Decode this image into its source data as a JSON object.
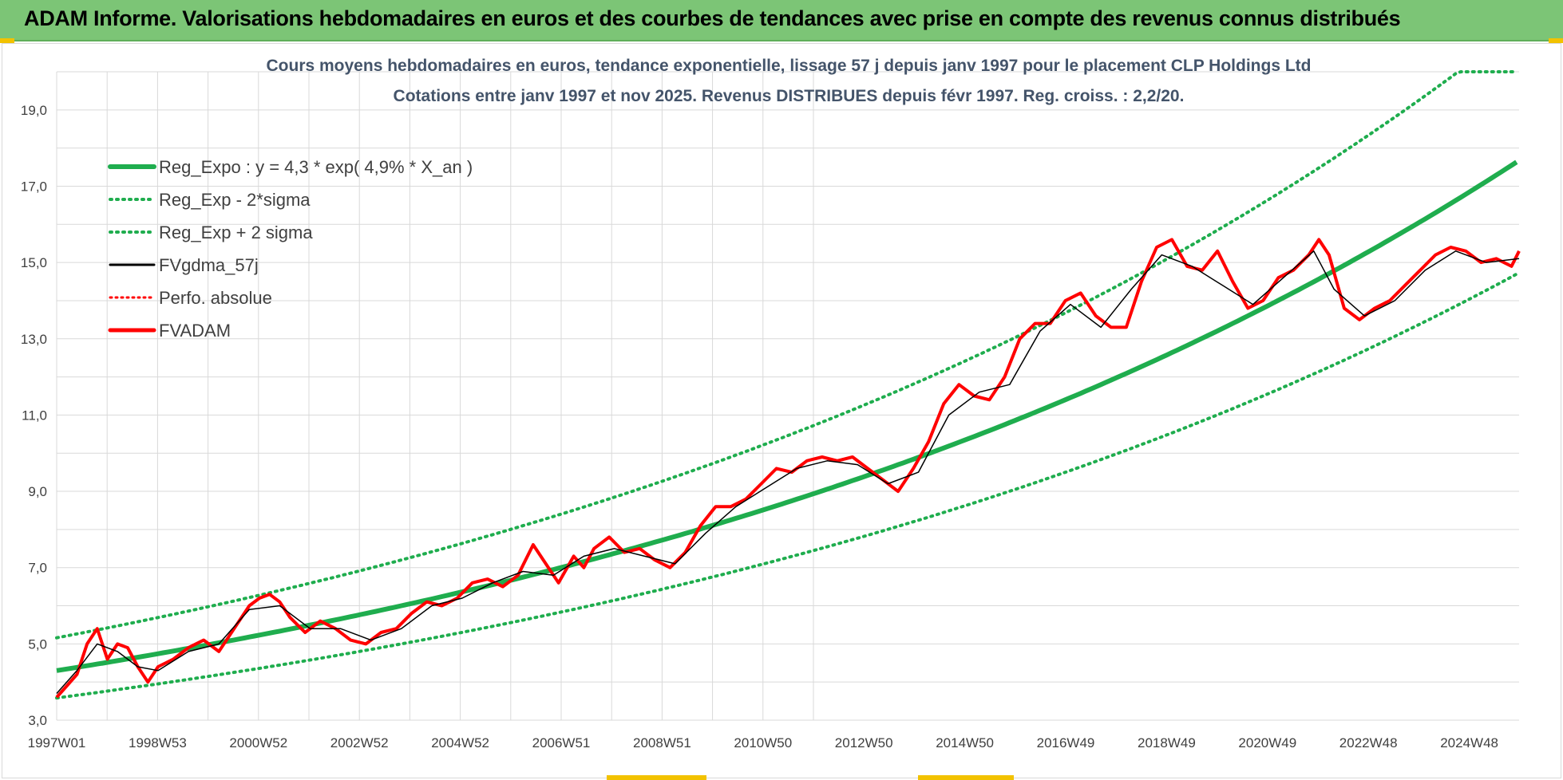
{
  "banner": {
    "title": "ADAM Informe. Valorisations hebdomadaires en euros et des courbes de tendances avec prise en compte des revenus connus distribués"
  },
  "colors": {
    "banner": "#7cc576",
    "reg_expo": "#1fad4e",
    "sigma": "#1fad4e",
    "fvgdma": "#000000",
    "perfo": "#ff0000",
    "fvadam": "#ff0000",
    "grid": "#d9d9d9",
    "title": "#44546a"
  },
  "chart_data": {
    "type": "line",
    "title_lines": [
      "Cours moyens hebdomadaires en euros, tendance exponentielle, lissage 57 j depuis janv 1997 pour le placement CLP Holdings Ltd",
      "Cotations entre janv 1997 et nov 2025. Revenus DISTRIBUES depuis févr 1997. Reg. croiss. : 2,2/20."
    ],
    "x_tick_labels": [
      "1997W01",
      "1998W53",
      "2000W52",
      "2002W52",
      "2004W52",
      "2006W51",
      "2008W51",
      "2010W50",
      "2012W50",
      "2014W50",
      "2016W49",
      "2018W49",
      "2020W49",
      "2022W48",
      "2024W48"
    ],
    "x_range_years": [
      1997.0,
      2025.85
    ],
    "y_tick_labels": [
      "3,0",
      "5,0",
      "7,0",
      "9,0",
      "11,0",
      "13,0",
      "15,0",
      "17,0",
      "19,0"
    ],
    "ylim": [
      3,
      20
    ],
    "grid": true,
    "legend_position": "top-left",
    "legend": [
      {
        "key": "reg_expo",
        "label": "Reg_Expo : y = 4,3 * exp( 4,9% *  X_an )",
        "style": "solid-thick"
      },
      {
        "key": "sigma_minus",
        "label": "Reg_Exp - 2*sigma",
        "style": "dotted"
      },
      {
        "key": "sigma_plus",
        "label": "Reg_Exp + 2 sigma",
        "style": "dotted"
      },
      {
        "key": "fvgdma",
        "label": "FVgdma_57j",
        "style": "solid"
      },
      {
        "key": "perfo",
        "label": "Perfo. absolue",
        "style": "dotted"
      },
      {
        "key": "fvadam",
        "label": "FVADAM",
        "style": "solid-thick"
      }
    ],
    "regression": {
      "a": 4.3,
      "b": 0.049,
      "sigma_factor": 1.2,
      "cap": 20.0
    },
    "series": [
      {
        "name": "FVADAM",
        "x": [
          1997.0,
          1997.2,
          1997.4,
          1997.6,
          1997.8,
          1998.0,
          1998.2,
          1998.4,
          1998.6,
          1998.8,
          1999.0,
          1999.3,
          1999.6,
          1999.9,
          2000.2,
          2000.5,
          2000.8,
          2001.0,
          2001.2,
          2001.4,
          2001.6,
          2001.9,
          2002.2,
          2002.5,
          2002.8,
          2003.1,
          2003.4,
          2003.7,
          2004.0,
          2004.3,
          2004.6,
          2004.9,
          2005.2,
          2005.5,
          2005.8,
          2006.1,
          2006.4,
          2006.6,
          2006.9,
          2007.2,
          2007.4,
          2007.6,
          2007.9,
          2008.2,
          2008.5,
          2008.8,
          2009.1,
          2009.4,
          2009.7,
          2010.0,
          2010.3,
          2010.6,
          2010.9,
          2011.2,
          2011.5,
          2011.8,
          2012.1,
          2012.4,
          2012.7,
          2013.0,
          2013.3,
          2013.6,
          2013.9,
          2014.2,
          2014.5,
          2014.8,
          2015.1,
          2015.4,
          2015.7,
          2016.0,
          2016.3,
          2016.6,
          2016.9,
          2017.2,
          2017.5,
          2017.8,
          2018.1,
          2018.4,
          2018.7,
          2019.0,
          2019.3,
          2019.6,
          2019.9,
          2020.2,
          2020.5,
          2020.8,
          2021.1,
          2021.4,
          2021.7,
          2021.9,
          2022.1,
          2022.4,
          2022.7,
          2023.0,
          2023.3,
          2023.6,
          2023.9,
          2024.2,
          2024.5,
          2024.8,
          2025.1,
          2025.4,
          2025.7,
          2025.85
        ],
        "values": [
          3.6,
          3.9,
          4.2,
          5.0,
          5.4,
          4.6,
          5.0,
          4.9,
          4.4,
          4.0,
          4.4,
          4.6,
          4.9,
          5.1,
          4.8,
          5.4,
          6.0,
          6.2,
          6.3,
          6.1,
          5.7,
          5.3,
          5.6,
          5.4,
          5.1,
          5.0,
          5.3,
          5.4,
          5.8,
          6.1,
          6.0,
          6.2,
          6.6,
          6.7,
          6.5,
          6.8,
          7.6,
          7.2,
          6.6,
          7.3,
          7.0,
          7.5,
          7.8,
          7.4,
          7.5,
          7.2,
          7.0,
          7.4,
          8.1,
          8.6,
          8.6,
          8.8,
          9.2,
          9.6,
          9.5,
          9.8,
          9.9,
          9.8,
          9.9,
          9.6,
          9.3,
          9.0,
          9.6,
          10.3,
          11.3,
          11.8,
          11.5,
          11.4,
          12.0,
          13.0,
          13.4,
          13.4,
          14.0,
          14.2,
          13.6,
          13.3,
          13.3,
          14.5,
          15.4,
          15.6,
          14.9,
          14.8,
          15.3,
          14.5,
          13.8,
          14.0,
          14.6,
          14.8,
          15.2,
          15.6,
          15.2,
          13.8,
          13.5,
          13.8,
          14.0,
          14.4,
          14.8,
          15.2,
          15.4,
          15.3,
          15.0,
          15.1,
          14.9,
          15.3
        ]
      },
      {
        "name": "FVgdma_57j",
        "x": [
          1997.0,
          1997.4,
          1997.8,
          1998.2,
          1998.6,
          1999.0,
          1999.6,
          2000.2,
          2000.8,
          2001.4,
          2002.0,
          2002.6,
          2003.2,
          2003.8,
          2004.4,
          2005.0,
          2005.6,
          2006.2,
          2006.8,
          2007.4,
          2008.0,
          2008.6,
          2009.2,
          2009.8,
          2010.4,
          2011.0,
          2011.6,
          2012.2,
          2012.8,
          2013.4,
          2014.0,
          2014.6,
          2015.2,
          2015.8,
          2016.4,
          2017.0,
          2017.6,
          2018.2,
          2018.8,
          2019.4,
          2020.0,
          2020.6,
          2021.2,
          2021.8,
          2022.2,
          2022.8,
          2023.4,
          2024.0,
          2024.6,
          2025.2,
          2025.85
        ],
        "values": [
          3.7,
          4.3,
          5.0,
          4.8,
          4.4,
          4.3,
          4.8,
          5.0,
          5.9,
          6.0,
          5.4,
          5.4,
          5.1,
          5.4,
          6.0,
          6.2,
          6.6,
          6.9,
          6.8,
          7.3,
          7.5,
          7.3,
          7.1,
          7.9,
          8.6,
          9.1,
          9.6,
          9.8,
          9.7,
          9.2,
          9.5,
          11.0,
          11.6,
          11.8,
          13.2,
          13.9,
          13.3,
          14.3,
          15.2,
          14.9,
          14.4,
          13.9,
          14.6,
          15.3,
          14.3,
          13.6,
          14.0,
          14.8,
          15.3,
          15.0,
          15.1
        ]
      }
    ]
  }
}
